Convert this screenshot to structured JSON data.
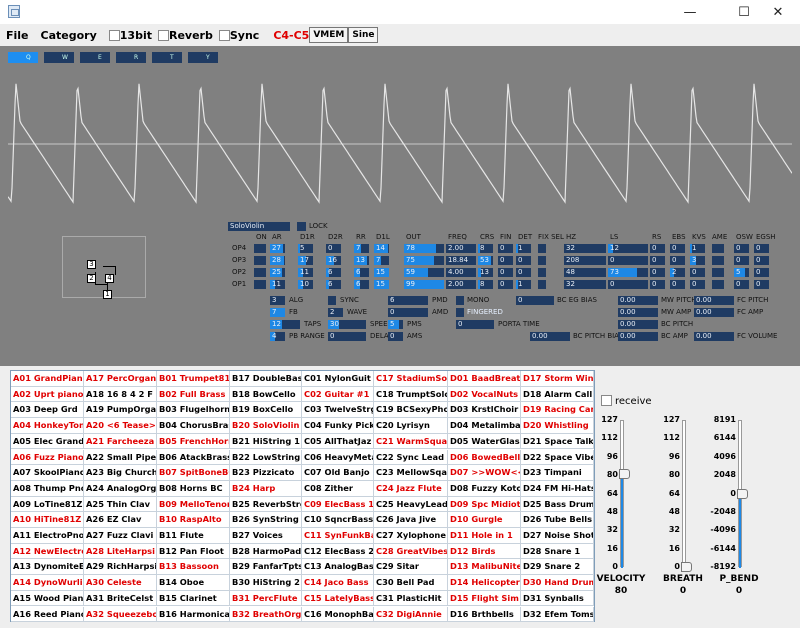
{
  "window": {
    "minimize": "—",
    "maximize": "☐",
    "close": "✕"
  },
  "menu": {
    "file": "File",
    "category": "Category",
    "cb_13bit": "13bit",
    "cb_reverb": "Reverb",
    "cb_sync": "Sync",
    "range": "C4-C5",
    "vmem": "VMEM",
    "sine": "Sine"
  },
  "op_tabs": [
    "Q",
    "W",
    "E",
    "R",
    "T",
    "Y"
  ],
  "voice": {
    "name": "SoloViolin",
    "lock": "LOCK"
  },
  "col_headers": {
    "on": "ON",
    "ar": "AR",
    "d1r": "D1R",
    "d2r": "D2R",
    "rr": "RR",
    "d1l": "D1L",
    "out": "OUT",
    "freq": "FREQ",
    "crs": "CRS",
    "fin": "FIN",
    "det": "DET",
    "fixsel": "FIX SEL",
    "hz": "HZ",
    "ls": "LS",
    "rs": "RS",
    "ebs": "EBS",
    "kvs": "KVS",
    "ame": "AME",
    "osw": "OSW",
    "egsh": "EGSH"
  },
  "ops": [
    {
      "name": "OP4",
      "ar": "27",
      "d1r": "5",
      "d2r": "0",
      "rr": "7",
      "d1l": "14",
      "out": "78",
      "freq": "2.00",
      "crs": "8",
      "fin": "0",
      "det": "1",
      "hz": "32",
      "ls": "12",
      "rs": "0",
      "ebs": "0",
      "kvs": "1",
      "osw": "0",
      "egsh": "0"
    },
    {
      "name": "OP3",
      "ar": "28",
      "d1r": "17",
      "d2r": "16",
      "rr": "13",
      "d1l": "7",
      "out": "75",
      "freq": "18.84",
      "crs": "53",
      "fin": "0",
      "det": "0",
      "hz": "208",
      "ls": "0",
      "rs": "0",
      "ebs": "0",
      "kvs": "3",
      "osw": "0",
      "egsh": "0"
    },
    {
      "name": "OP2",
      "ar": "25",
      "d1r": "11",
      "d2r": "6",
      "rr": "6",
      "d1l": "15",
      "out": "59",
      "freq": "4.00",
      "crs": "13",
      "fin": "0",
      "det": "0",
      "hz": "48",
      "ls": "73",
      "rs": "0",
      "ebs": "2",
      "kvs": "0",
      "osw": "5",
      "egsh": "0"
    },
    {
      "name": "OP1",
      "ar": "11",
      "d1r": "10",
      "d2r": "6",
      "rr": "6",
      "d1l": "15",
      "out": "99",
      "freq": "2.00",
      "crs": "8",
      "fin": "0",
      "det": "1",
      "hz": "32",
      "ls": "0",
      "rs": "0",
      "ebs": "0",
      "kvs": "0",
      "osw": "0",
      "egsh": "0"
    }
  ],
  "alg_nodes": [
    "3",
    "4",
    "2",
    "1"
  ],
  "params": {
    "alg": {
      "v": "3",
      "l": "ALG"
    },
    "fb": {
      "v": "7",
      "l": "FB"
    },
    "taps": {
      "v": "12",
      "l": "TAPS"
    },
    "pbrange": {
      "v": "4",
      "l": "PB RANGE"
    },
    "sync": {
      "v": "",
      "l": "SYNC"
    },
    "wave": {
      "v": "2",
      "l": "WAVE"
    },
    "speed": {
      "v": "30",
      "l": "SPEED"
    },
    "delay": {
      "v": "0",
      "l": "DELAY"
    },
    "pmd": {
      "v": "6",
      "l": "PMD"
    },
    "amd": {
      "v": "0",
      "l": "AMD"
    },
    "pms": {
      "v": "5",
      "l": "PMS"
    },
    "ams": {
      "v": "0",
      "l": "AMS"
    },
    "mono": {
      "l": "MONO"
    },
    "fingered": {
      "l": "FINGERED"
    },
    "portatime": {
      "v": "0",
      "l": "PORTA TIME"
    },
    "bcegbias": {
      "v": "0",
      "l": "BC EG BIAS"
    },
    "bcpitchbias": {
      "v": "0.00",
      "l": "BC PITCH BIAS"
    },
    "mwpitch": {
      "v": "0.00",
      "l": "MW PITCH"
    },
    "mwamp": {
      "v": "0.00",
      "l": "MW AMP"
    },
    "bcpitch": {
      "v": "0.00",
      "l": "BC PITCH"
    },
    "bcamp": {
      "v": "0.00",
      "l": "BC AMP"
    },
    "fcpitch": {
      "v": "0.00",
      "l": "FC PITCH"
    },
    "fcamp": {
      "v": "0.00",
      "l": "FC AMP"
    },
    "fcvolume": {
      "v": "0.00",
      "l": "FC VOLUME"
    }
  },
  "presets": [
    [
      "A01 GrandPiano",
      "A02 Uprt piano",
      "A03 Deep Grd",
      "A04 HonkeyTonk",
      "A05 Elec Grand",
      "A06 Fuzz Piano",
      "A07 SkoolPiano",
      "A08 Thump Pno",
      "A09 LoTine81Z",
      "A10 HiTine81Z",
      "A11 ElectroPno",
      "A12 NewElectro",
      "A13 DynomiteEP",
      "A14 DynoWurlie",
      "A15 Wood Piano",
      "A16 Reed Piano"
    ],
    [
      "A17 PercOrgan",
      "A18 16 8 4 2 F",
      "A19 PumpOrgan",
      "A20 <6 Tease>",
      "A21 Farcheeza",
      "A22 Small Pipe",
      "A23 Big Church",
      "A24 AnalogOrgn",
      "A25 Thin Clav",
      "A26 EZ Clav",
      "A27 Fuzz Clavi",
      "A28 LiteHarpsi",
      "A29 RichHarpsi",
      "A30 Celeste",
      "A31 BriteCelst",
      "A32 Squeezebox"
    ],
    [
      "B01 Trumpet81Z",
      "B02 Full Brass",
      "B03 Flugelhorn",
      "B04 ChorusBras",
      "B05 FrenchHorn",
      "B06 AtackBrass",
      "B07 SpitBoneBC",
      "B08 Horns BC",
      "B09 MelloTenor",
      "B10 RaspAlto",
      "B11 Flute",
      "B12 Pan Floot",
      "B13 Bassoon",
      "B14 Oboe",
      "B15 Clarinet",
      "B16 Harmonica"
    ],
    [
      "B17 DoubleBass",
      "B18 BowCello",
      "B19 BoxCello",
      "B20 SoloViolin",
      "B21 HiString 1",
      "B22 LowString",
      "B23 Pizzicato",
      "B24 Harp",
      "B25 ReverbStrg",
      "B26 SynString",
      "B27 Voices",
      "B28 HarmoPad",
      "B29 FanfarTpts",
      "B30 HiString 2",
      "B31 PercFlute",
      "B32 BreathOrgn"
    ],
    [
      "C01 NylonGuit",
      "C02 Guitar #1",
      "C03 TwelveStrg",
      "C04 Funky Pick",
      "C05 AllThatJaz",
      "C06 HeavyMetal",
      "C07 Old Banjo",
      "C08 Zither",
      "C09 ElecBass 1",
      "C10 SqncrBass",
      "C11 SynFunkBas",
      "C12 ElecBass 2",
      "C13 AnalogBass",
      "C14 Jaco Bass",
      "C15 LatelyBass",
      "C16 MonophBass"
    ],
    [
      "C17 StadiumSol",
      "C18 TrumptSolo",
      "C19 BCSexyPhon",
      "C20 Lyrisyn",
      "C21 WarmSquare",
      "C22 Sync Lead",
      "C23 MellowSqar",
      "C24 Jazz Flute",
      "C25 HeavyLead",
      "C26 Java Jive",
      "C27 Xylophone",
      "C28 GreatVibes",
      "C29 Sitar",
      "C30 Bell Pad",
      "C31 PlasticHit",
      "C32 DigiAnnie"
    ],
    [
      "D01 BaadBreath",
      "D02 VocalNuts",
      "D03 KrstlChoir",
      "D04 Metalimba",
      "D05 WaterGlass",
      "D06 BowedBell",
      "D07 >>WOW<<",
      "D08 Fuzzy Koto",
      "D09 Spc Midiot",
      "D10 Gurgle",
      "D11 Hole in 1",
      "D12 Birds",
      "D13 MalibuNite",
      "D14 Helicopter",
      "D15 Flight Sim",
      "D16 Brthbells"
    ],
    [
      "D17 Storm Wind",
      "D18 Alarm Call",
      "D19 Racing Car",
      "D20 Whistling",
      "D21 Space Talk",
      "D22 Space Vibe",
      "D23 Timpani",
      "D24 FM Hi-Hats",
      "D25 Bass Drum",
      "D26 Tube Bells",
      "D27 Noise Shot",
      "D28 Snare 1",
      "D29 Snare 2",
      "D30 Hand Drum",
      "D31 Synballs",
      "D32 Efem Toms"
    ]
  ],
  "preset_colors": {
    "red": "#e00000",
    "black": "#000000"
  },
  "red_presets": [
    [
      0,
      1,
      3,
      5,
      9,
      11,
      13
    ],
    [
      0,
      3,
      4,
      11,
      13,
      15
    ],
    [
      0,
      1,
      4,
      6,
      8,
      9,
      12
    ],
    [
      3,
      7,
      14,
      15
    ],
    [
      1,
      8,
      10,
      13,
      14
    ],
    [
      0,
      4,
      7,
      11,
      15
    ],
    [
      0,
      1,
      5,
      6,
      8,
      9,
      10,
      11,
      12,
      13,
      14
    ],
    [
      0,
      2,
      3,
      13
    ]
  ],
  "receive": {
    "label": "receive"
  },
  "sliders": {
    "velocity": {
      "label": "VELOCITY",
      "value": "80",
      "ticks": [
        "127",
        "112",
        "96",
        "80",
        "64",
        "48",
        "32",
        "16",
        "0"
      ],
      "level": 0.63
    },
    "breath": {
      "label": "BREATH",
      "value": "0",
      "ticks": [
        "127",
        "112",
        "96",
        "80",
        "64",
        "48",
        "32",
        "16",
        "0"
      ],
      "level": 0.0
    },
    "pbend": {
      "label": "P_BEND",
      "value": "0",
      "ticks": [
        "8191",
        "6144",
        "4096",
        "2048",
        "0",
        "-2048",
        "-4096",
        "-6144",
        "-8192"
      ],
      "level": 0.5
    }
  },
  "accent": "#1e88e5",
  "dark": "#1f3b63"
}
